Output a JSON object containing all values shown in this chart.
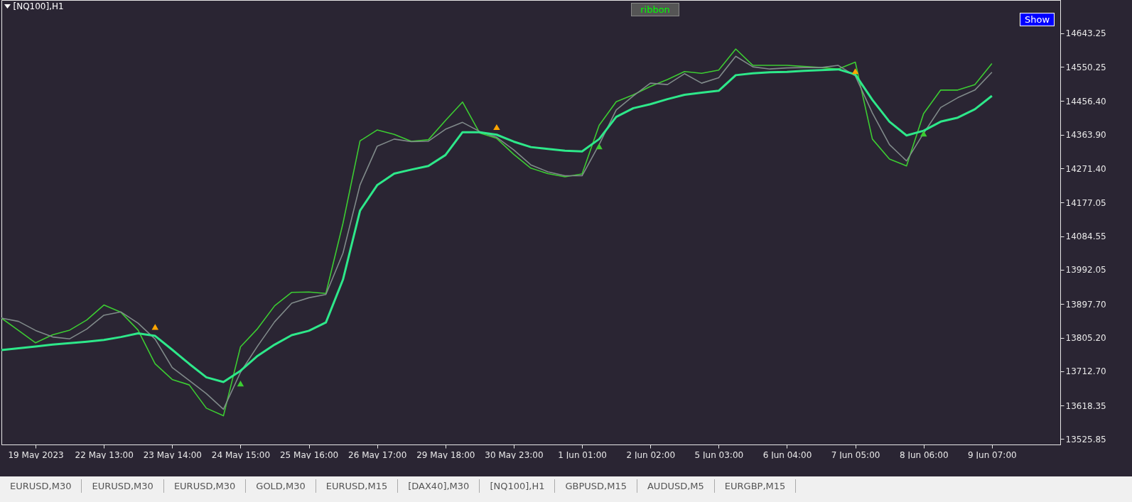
{
  "chart_data": {
    "type": "line",
    "title": "[NQ100],H1",
    "annotations": [
      "ribbon",
      "Show",
      "EURUSD,M30",
      "EURUSD,M30",
      "EURUSD,M30",
      "GOLD,M30",
      "EURUSD,M15",
      "[DAX40],M30",
      "[NQ100],H1",
      "GBPUSD,M15",
      "AUDUSD,M5",
      "EURGBP,M15"
    ],
    "categories": [
      null,
      null,
      "19 May 2023",
      null,
      null,
      null,
      "22 May 13:00",
      null,
      null,
      null,
      "23 May 14:00",
      null,
      null,
      null,
      "24 May 15:00",
      null,
      null,
      null,
      "25 May 16:00",
      null,
      null,
      null,
      "26 May 17:00",
      null,
      null,
      null,
      "29 May 18:00",
      null,
      null,
      null,
      "30 May 23:00",
      null,
      null,
      null,
      "1 Jun 01:00",
      null,
      null,
      null,
      "2 Jun 02:00",
      null,
      null,
      null,
      "5 Jun 03:00",
      null,
      null,
      null,
      "6 Jun 04:00",
      null,
      null,
      null,
      "7 Jun 05:00",
      null,
      null,
      null,
      "8 Jun 06:00",
      null,
      null,
      null,
      "9 Jun 07:00",
      null,
      null,
      null,
      null
    ],
    "ylim": [
      13511,
      14735
    ],
    "yticks": [
      13525.85,
      13618.35,
      {
        "value": 13712.7,
        "label": "13712.70"
      },
      {
        "value": 13805.2,
        "label": "13805.20"
      },
      {
        "value": 13897.7,
        "label": "13897.70"
      },
      13992.05,
      14084.55,
      14177.05,
      {
        "value": 14271.4,
        "label": "14271.40"
      },
      {
        "value": 14363.9,
        "label": "14363.90"
      },
      {
        "value": 14456.4,
        "label": "14456.40"
      },
      14550.25,
      14643.25
    ],
    "series": [
      {
        "color": "#3ccc32",
        "values": [
          13859,
          13825,
          13791,
          13813,
          13826,
          13854,
          13895,
          13875,
          13826,
          13733,
          13690,
          13675,
          13611,
          13590,
          13780,
          13830,
          13893,
          13930,
          13931,
          13927,
          14120,
          14347,
          14377,
          14365,
          14346,
          14350,
          14403,
          14454,
          14369,
          14354,
          14310,
          14272,
          14257,
          14248,
          14256,
          14390,
          14455,
          14474,
          14497,
          14516,
          14538,
          14533,
          14542,
          14600,
          14555,
          14555,
          14555,
          14552,
          14549,
          14545,
          14564,
          14352,
          14297,
          14278,
          14422,
          14487,
          14487,
          14502,
          14560,
          null,
          null,
          null,
          null
        ]
      },
      {
        "color": "#808a8a",
        "values": [
          13859,
          13850,
          13825,
          13807,
          13802,
          13829,
          13867,
          13876,
          13845,
          13801,
          13723,
          13687,
          13651,
          13608,
          13710,
          13782,
          13849,
          13900,
          13915,
          13924,
          14038,
          14226,
          14332,
          14352,
          14345,
          14346,
          14379,
          14398,
          14373,
          14357,
          14322,
          14281,
          14262,
          14251,
          14251,
          14337,
          14432,
          14471,
          14506,
          14502,
          14532,
          14506,
          14521,
          14580,
          14551,
          14545,
          14548,
          14549,
          14549,
          14555,
          14526,
          14424,
          14337,
          14292,
          14368,
          14439,
          14466,
          14487,
          14536,
          null,
          null,
          null,
          null
        ]
      },
      {
        "color": "#2ee88a",
        "values": [
          13771,
          13776,
          13781,
          13786,
          13790,
          13794,
          13799,
          13807,
          13817,
          13810,
          13772,
          13733,
          13696,
          13683,
          13714,
          13755,
          13786,
          13812,
          13824,
          13847,
          13965,
          14155,
          14225,
          14257,
          14268,
          14278,
          14308,
          14371,
          14371,
          14364,
          14345,
          14330,
          14325,
          14320,
          14318,
          14352,
          14413,
          14437,
          14448,
          14462,
          14474,
          14480,
          14485,
          14528,
          14533,
          14536,
          14537,
          14540,
          14542,
          14544,
          14530,
          14460,
          14400,
          14362,
          14375,
          14400,
          14411,
          14434,
          14471,
          null,
          null,
          null,
          null
        ]
      },
      {
        "type": "scatter",
        "marker": "triangle",
        "color": "#ffa500",
        "values": [
          null,
          null,
          null,
          null,
          null,
          null,
          null,
          null,
          null,
          13835,
          null,
          null,
          null,
          null,
          null,
          null,
          null,
          null,
          null,
          null,
          null,
          null,
          null,
          null,
          null,
          null,
          null,
          null,
          null,
          14385,
          null,
          null,
          null,
          null,
          null,
          null,
          null,
          null,
          null,
          null,
          null,
          null,
          null,
          null,
          null,
          null,
          null,
          null,
          null,
          null,
          14539,
          null,
          null,
          null,
          null,
          null,
          null,
          null,
          null,
          null,
          null,
          null,
          null
        ]
      },
      {
        "type": "scatter",
        "marker": "triangle",
        "color": "#3ccc32",
        "values": [
          null,
          null,
          null,
          null,
          null,
          null,
          null,
          null,
          null,
          null,
          null,
          null,
          null,
          null,
          13679,
          null,
          null,
          null,
          null,
          null,
          null,
          null,
          null,
          null,
          null,
          null,
          null,
          null,
          null,
          null,
          null,
          null,
          null,
          null,
          null,
          14332,
          null,
          null,
          null,
          null,
          null,
          null,
          null,
          null,
          null,
          null,
          null,
          null,
          null,
          null,
          null,
          null,
          null,
          null,
          14367,
          null,
          null,
          null,
          null,
          null,
          null,
          null,
          null
        ]
      }
    ]
  }
}
